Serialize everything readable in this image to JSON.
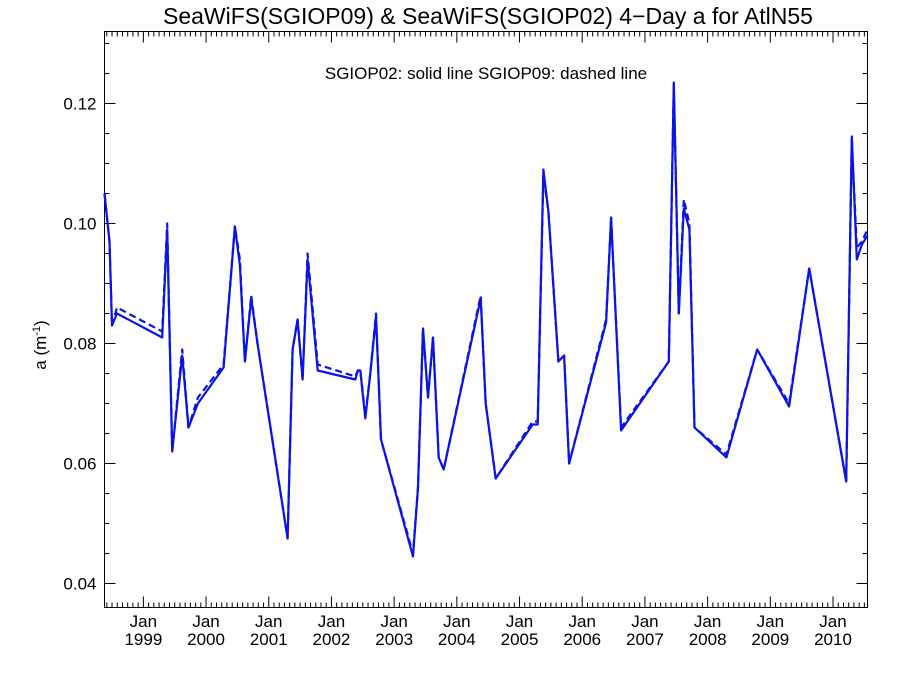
{
  "chart_data": {
    "type": "line",
    "title": "SeaWiFS(SGIOP09) & SeaWiFS(SGIOP02) 4−Day a for AtlN55",
    "annotation": "SGIOP02: solid line   SGIOP09: dashed line",
    "xlabel": "",
    "ylabel": "a (m",
    "ylabel_sup": "-1",
    "ylabel_close": ")",
    "xlim": [
      1998.38,
      2010.55
    ],
    "ylim": [
      0.036,
      0.132
    ],
    "y_ticks": [
      {
        "v": 0.04,
        "label": "0.04"
      },
      {
        "v": 0.06,
        "label": "0.06"
      },
      {
        "v": 0.08,
        "label": "0.08"
      },
      {
        "v": 0.1,
        "label": "0.10"
      },
      {
        "v": 0.12,
        "label": "0.12"
      }
    ],
    "y_minor_step": 0.005,
    "x_tick_months": [
      "Jan",
      "Jan",
      "Jan",
      "Jan",
      "Jan",
      "Jan",
      "Jan",
      "Jan",
      "Jan",
      "Jan",
      "Jan",
      "Jan"
    ],
    "x_tick_years": [
      "1999",
      "2000",
      "2001",
      "2002",
      "2003",
      "2004",
      "2005",
      "2006",
      "2007",
      "2008",
      "2009",
      "2010"
    ],
    "x_minor": "monthly",
    "grid": false,
    "series": [
      {
        "name": "SGIOP02",
        "style": "solid",
        "color": "#0a14e6",
        "points": [
          [
            1998.38,
            0.105
          ],
          [
            1998.46,
            0.097
          ],
          [
            1998.5,
            0.083
          ],
          [
            1998.58,
            0.085
          ],
          [
            1999.3,
            0.081
          ],
          [
            1999.38,
            0.099
          ],
          [
            1999.46,
            0.062
          ],
          [
            1999.62,
            0.078
          ],
          [
            1999.72,
            0.066
          ],
          [
            1999.87,
            0.07
          ],
          [
            2000.28,
            0.076
          ],
          [
            2000.46,
            0.0995
          ],
          [
            2000.54,
            0.093
          ],
          [
            2000.62,
            0.077
          ],
          [
            2000.72,
            0.0875
          ],
          [
            2000.82,
            0.08
          ],
          [
            2001.3,
            0.0475
          ],
          [
            2001.38,
            0.079
          ],
          [
            2001.46,
            0.084
          ],
          [
            2001.54,
            0.074
          ],
          [
            2001.62,
            0.094
          ],
          [
            2001.78,
            0.0755
          ],
          [
            2002.38,
            0.074
          ],
          [
            2002.42,
            0.0755
          ],
          [
            2002.46,
            0.0755
          ],
          [
            2002.54,
            0.0675
          ],
          [
            2002.62,
            0.075
          ],
          [
            2002.71,
            0.0845
          ],
          [
            2002.79,
            0.064
          ],
          [
            2003.3,
            0.0445
          ],
          [
            2003.38,
            0.056
          ],
          [
            2003.46,
            0.0825
          ],
          [
            2003.54,
            0.071
          ],
          [
            2003.62,
            0.081
          ],
          [
            2003.71,
            0.061
          ],
          [
            2003.79,
            0.059
          ],
          [
            2004.38,
            0.0875
          ],
          [
            2004.46,
            0.07
          ],
          [
            2004.62,
            0.0575
          ],
          [
            2005.21,
            0.0665
          ],
          [
            2005.29,
            0.0665
          ],
          [
            2005.38,
            0.109
          ],
          [
            2005.46,
            0.102
          ],
          [
            2005.62,
            0.077
          ],
          [
            2005.71,
            0.078
          ],
          [
            2005.79,
            0.06
          ],
          [
            2006.38,
            0.0835
          ],
          [
            2006.46,
            0.101
          ],
          [
            2006.62,
            0.0655
          ],
          [
            2007.38,
            0.077
          ],
          [
            2007.46,
            0.1235
          ],
          [
            2007.54,
            0.085
          ],
          [
            2007.62,
            0.1025
          ],
          [
            2007.71,
            0.099
          ],
          [
            2007.79,
            0.066
          ],
          [
            2008.3,
            0.061
          ],
          [
            2008.79,
            0.079
          ],
          [
            2009.3,
            0.0695
          ],
          [
            2009.62,
            0.0925
          ],
          [
            2010.21,
            0.057
          ],
          [
            2010.3,
            0.1145
          ],
          [
            2010.38,
            0.094
          ],
          [
            2010.46,
            0.0965
          ],
          [
            2010.55,
            0.098
          ]
        ]
      },
      {
        "name": "SGIOP09",
        "style": "dashed",
        "color": "#0a14e6",
        "points": [
          [
            1998.38,
            0.105
          ],
          [
            1998.46,
            0.097
          ],
          [
            1998.5,
            0.083
          ],
          [
            1998.58,
            0.086
          ],
          [
            1999.3,
            0.082
          ],
          [
            1999.38,
            0.1
          ],
          [
            1999.46,
            0.062
          ],
          [
            1999.62,
            0.079
          ],
          [
            1999.72,
            0.066
          ],
          [
            1999.87,
            0.071
          ],
          [
            2000.28,
            0.0765
          ],
          [
            2000.46,
            0.0995
          ],
          [
            2000.54,
            0.094
          ],
          [
            2000.62,
            0.077
          ],
          [
            2000.72,
            0.088
          ],
          [
            2000.82,
            0.08
          ],
          [
            2001.3,
            0.0475
          ],
          [
            2001.38,
            0.079
          ],
          [
            2001.46,
            0.084
          ],
          [
            2001.54,
            0.074
          ],
          [
            2001.62,
            0.095
          ],
          [
            2001.78,
            0.0765
          ],
          [
            2002.38,
            0.0745
          ],
          [
            2002.42,
            0.0755
          ],
          [
            2002.46,
            0.0755
          ],
          [
            2002.54,
            0.068
          ],
          [
            2002.62,
            0.075
          ],
          [
            2002.71,
            0.085
          ],
          [
            2002.79,
            0.064
          ],
          [
            2003.3,
            0.045
          ],
          [
            2003.38,
            0.056
          ],
          [
            2003.46,
            0.0825
          ],
          [
            2003.54,
            0.071
          ],
          [
            2003.62,
            0.081
          ],
          [
            2003.71,
            0.061
          ],
          [
            2003.79,
            0.059
          ],
          [
            2004.38,
            0.088
          ],
          [
            2004.46,
            0.07
          ],
          [
            2004.62,
            0.0575
          ],
          [
            2005.21,
            0.067
          ],
          [
            2005.29,
            0.067
          ],
          [
            2005.38,
            0.108
          ],
          [
            2005.46,
            0.102
          ],
          [
            2005.62,
            0.077
          ],
          [
            2005.71,
            0.078
          ],
          [
            2005.79,
            0.06
          ],
          [
            2006.38,
            0.084
          ],
          [
            2006.46,
            0.101
          ],
          [
            2006.62,
            0.066
          ],
          [
            2007.38,
            0.077
          ],
          [
            2007.46,
            0.123
          ],
          [
            2007.54,
            0.085
          ],
          [
            2007.62,
            0.104
          ],
          [
            2007.71,
            0.1
          ],
          [
            2007.79,
            0.066
          ],
          [
            2008.3,
            0.0615
          ],
          [
            2008.79,
            0.079
          ],
          [
            2009.3,
            0.07
          ],
          [
            2009.62,
            0.0925
          ],
          [
            2010.21,
            0.057
          ],
          [
            2010.3,
            0.114
          ],
          [
            2010.38,
            0.096
          ],
          [
            2010.46,
            0.097
          ],
          [
            2010.55,
            0.099
          ]
        ]
      }
    ]
  }
}
